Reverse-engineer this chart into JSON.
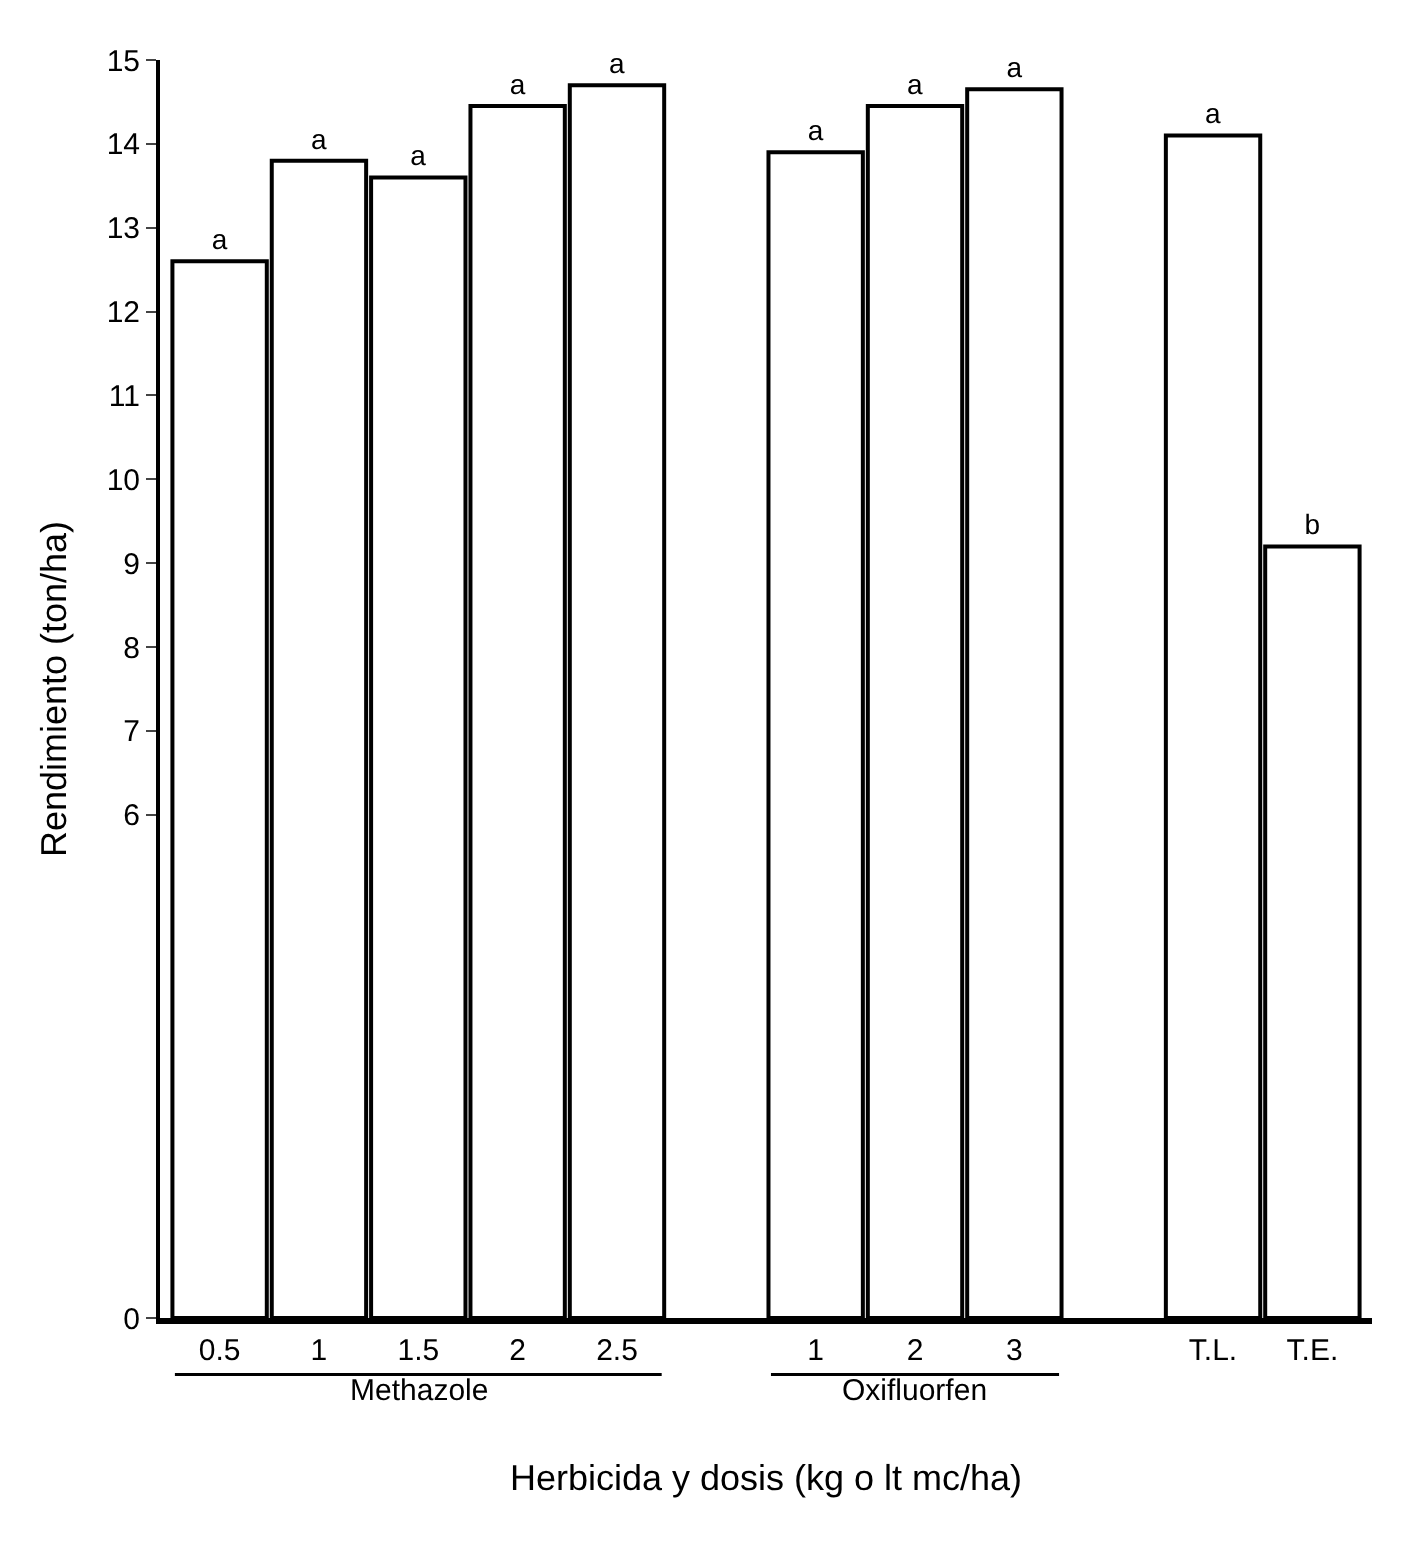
{
  "chart_data": {
    "type": "bar",
    "xlabel": "Herbicida y dosis (kg o lt mc/ha)",
    "ylabel": "Rendimiento (ton/ha)",
    "categories": [
      "0.5",
      "1",
      "1.5",
      "2",
      "2.5",
      null,
      "1",
      "2",
      "3",
      null,
      "T.L.",
      "T.E."
    ],
    "values": [
      12.6,
      13.8,
      13.6,
      14.45,
      14.7,
      null,
      13.9,
      14.45,
      14.65,
      null,
      14.1,
      9.2
    ],
    "value_labels": [
      "a",
      "a",
      "a",
      "a",
      "a",
      null,
      "a",
      "a",
      "a",
      null,
      "a",
      "b"
    ],
    "color": "#ffffff",
    "ylim": [
      0,
      15
    ],
    "yticks": [
      0,
      6,
      7,
      8,
      9,
      10,
      11,
      12,
      13,
      14,
      15
    ],
    "annotations": [
      "Methazole",
      "Oxifluorfen"
    ]
  }
}
